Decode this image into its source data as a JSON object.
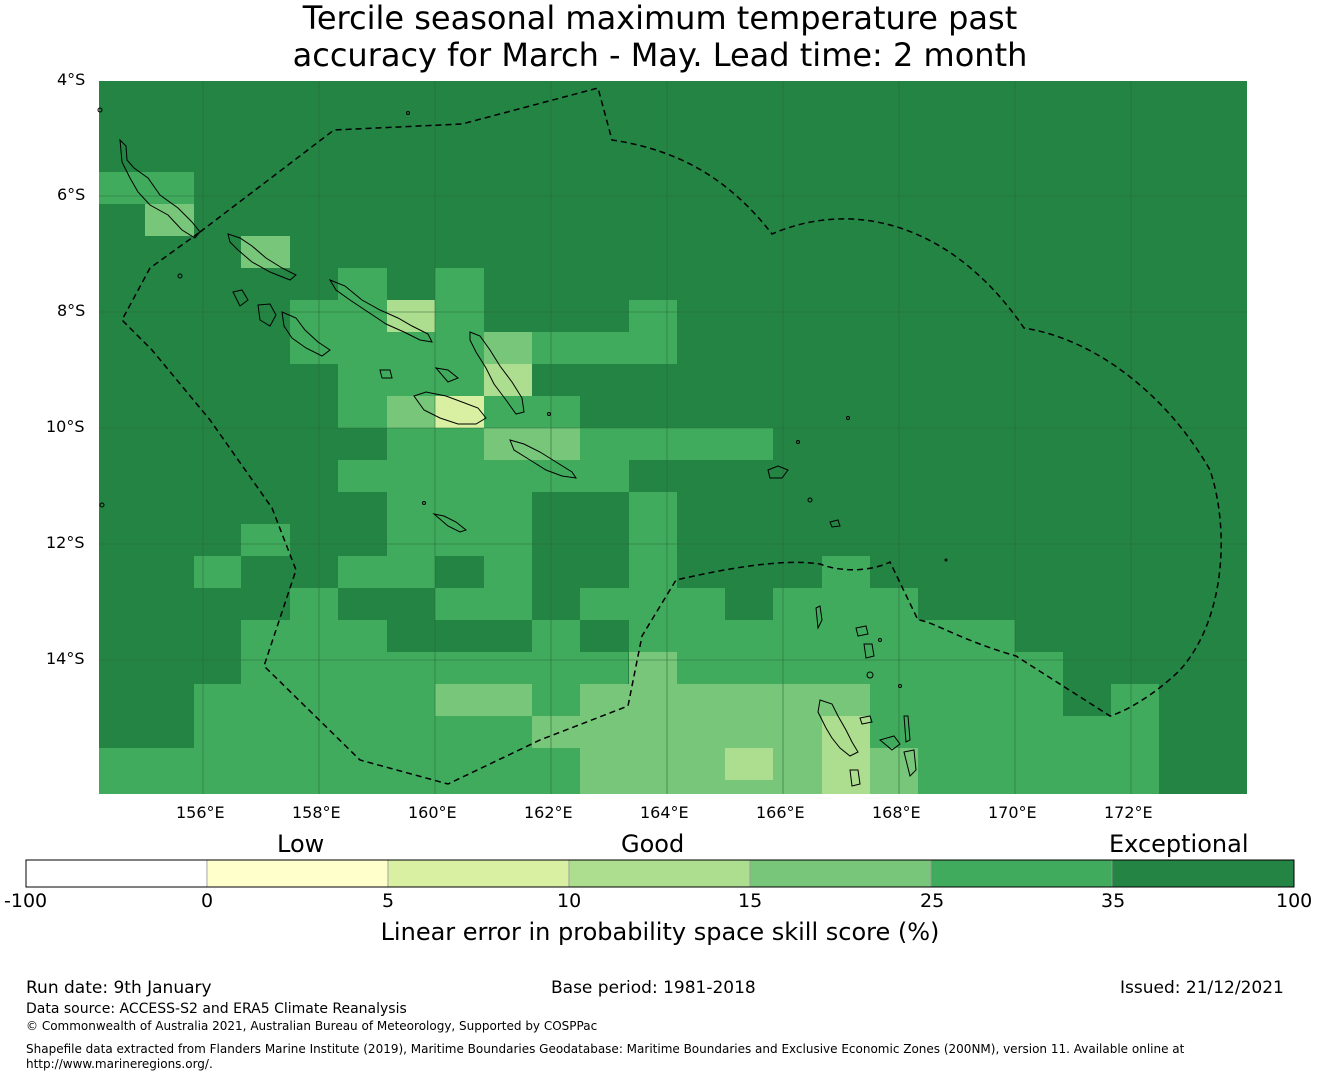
{
  "title": {
    "line1": "Tercile seasonal maximum temperature past",
    "line2": "accuracy for March - May. Lead time: 2 month"
  },
  "map": {
    "lat_labels": [
      "4°S",
      "6°S",
      "8°S",
      "10°S",
      "12°S",
      "14°S"
    ],
    "lon_labels": [
      "156°E",
      "158°E",
      "160°E",
      "162°E",
      "164°E",
      "166°E",
      "168°E",
      "170°E",
      "172°E"
    ],
    "grid_colors": {
      "c0": "#ffffcc",
      "c1": "#d9f0a3",
      "c2": "#addd8e",
      "c3": "#78c679",
      "c4": "#41ab5d",
      "c5": "#238443"
    },
    "line_colors": {
      "coast": "#000000",
      "eez": "#000000",
      "grid": "#2b6b3a"
    }
  },
  "colorbar": {
    "categories": [
      "Low",
      "Good",
      "Exceptional"
    ],
    "ticks": [
      "-100",
      "0",
      "5",
      "10",
      "15",
      "25",
      "35",
      "100"
    ],
    "colors": [
      "#ffffff",
      "#ffffcc",
      "#d9f0a3",
      "#addd8e",
      "#78c679",
      "#41ab5d",
      "#238443"
    ],
    "label": "Linear error in probability space skill score (%)"
  },
  "footer": {
    "run_date": "Run date: 9th January",
    "base_period": "Base period: 1981-2018",
    "issued": "Issued: 21/12/2021",
    "data_source": "Data source: ACCESS-S2 and ERA5 Climate Reanalysis",
    "copyright": "© Commonwealth of Australia 2021, Australian Bureau of Meteorology, Supported by COSPPac",
    "shapefile_line1": "Shapefile data extracted from Flanders Marine Institute (2019), Maritime Boundaries Geodatabase: Maritime Boundaries and Exclusive Economic Zones (200NM), version 11. Available online at",
    "shapefile_line2": "http://www.marineregions.org/."
  }
}
